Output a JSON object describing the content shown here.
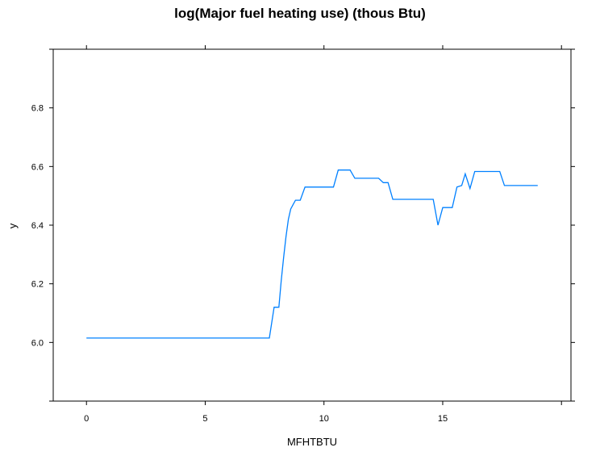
{
  "chart_data": {
    "type": "line",
    "title": "log(Major fuel heating use) (thous Btu)",
    "xlabel": "MFHTBTU",
    "ylabel": "y",
    "xlim": [
      -1.4,
      20.4
    ],
    "ylim": [
      5.8,
      7.0
    ],
    "x_ticks": [
      0,
      5,
      10,
      15
    ],
    "y_ticks": [
      6.0,
      6.2,
      6.4,
      6.6,
      6.8
    ],
    "x_tick_labels": [
      "0",
      "5",
      "10",
      "15"
    ],
    "y_tick_labels": [
      "6.0",
      "6.2",
      "6.4",
      "6.6",
      "6.8"
    ],
    "line_color": "#0080ff",
    "series": [
      {
        "x": [
          0,
          7.7,
          7.9,
          8.0,
          8.1,
          8.2,
          8.3,
          8.4,
          8.5,
          8.6,
          8.7,
          8.8,
          9.0,
          9.2,
          9.3,
          10.4,
          10.6,
          11.1,
          11.3,
          12.3,
          12.5,
          12.7,
          12.9,
          14.6,
          14.8,
          15.0,
          15.4,
          15.6,
          15.8,
          15.95,
          16.15,
          16.35,
          17.4,
          17.6,
          19.0
        ],
        "y": [
          6.015,
          6.015,
          6.12,
          6.12,
          6.12,
          6.21,
          6.29,
          6.36,
          6.42,
          6.455,
          6.47,
          6.485,
          6.485,
          6.53,
          6.53,
          6.53,
          6.588,
          6.588,
          6.56,
          6.56,
          6.545,
          6.545,
          6.488,
          6.488,
          6.4,
          6.46,
          6.46,
          6.53,
          6.535,
          6.575,
          6.525,
          6.583,
          6.583,
          6.535,
          6.535
        ]
      }
    ],
    "grid": false,
    "legend": "none"
  }
}
